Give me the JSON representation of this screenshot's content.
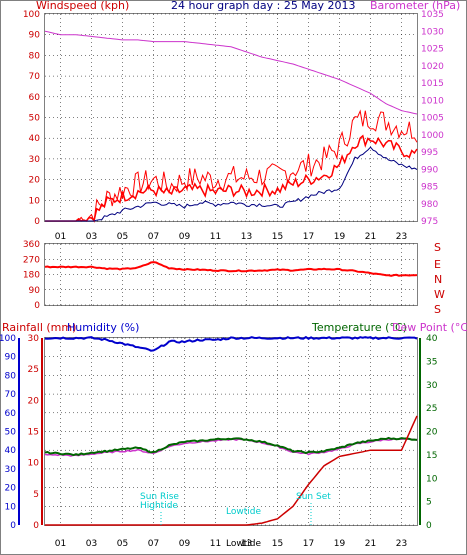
{
  "title": "24 hour graph day : 25 May 2013",
  "colors": {
    "wind": "#ff0000",
    "gust": "#ff0000",
    "avg": "#000080",
    "baro": "#cc33cc",
    "rain": "#cc0000",
    "humidity": "#0000cc",
    "temp": "#006600",
    "dew": "#cc33cc",
    "annot": "#00cccc",
    "grid": "#000000",
    "frame": "#808080"
  },
  "x_ticks": [
    "01",
    "03",
    "05",
    "07",
    "09",
    "11",
    "13",
    "15",
    "17",
    "19",
    "21",
    "23"
  ],
  "chart_data": [
    {
      "type": "line",
      "title": "24 hour graph day : 25 May 2013",
      "left_label": "Windspeed (kph)",
      "right_label": "Barometer (hPa)",
      "y_left_ticks": [
        0,
        10,
        20,
        30,
        40,
        50,
        60,
        70,
        80,
        90,
        100
      ],
      "y_right_ticks": [
        975,
        980,
        985,
        990,
        995,
        1000,
        1005,
        1010,
        1015,
        1020,
        1025,
        1030,
        1035
      ],
      "ylim_left": [
        0,
        100
      ],
      "ylim_right": [
        975,
        1035
      ],
      "x_hours": [
        0,
        1,
        2,
        3,
        4,
        5,
        6,
        7,
        8,
        9,
        10,
        11,
        12,
        13,
        14,
        15,
        16,
        17,
        18,
        19,
        20,
        21,
        22,
        23,
        24
      ],
      "series": [
        {
          "key": "gust",
          "values": [
            0,
            0,
            0,
            3,
            11,
            15,
            18,
            20,
            17,
            20,
            21,
            20,
            21,
            21,
            22,
            22,
            25,
            27,
            30,
            36,
            48,
            50,
            48,
            45,
            44
          ]
        },
        {
          "key": "wind",
          "values": [
            0,
            0,
            0,
            2,
            9,
            12,
            14,
            15,
            13,
            15,
            15,
            14,
            15,
            14,
            15,
            15,
            18,
            20,
            22,
            27,
            38,
            40,
            37,
            34,
            32
          ]
        },
        {
          "key": "avg",
          "values": [
            0,
            0,
            0,
            0,
            2,
            5,
            7,
            9,
            8,
            7,
            9,
            8,
            9,
            8,
            8,
            7,
            9,
            12,
            14,
            16,
            30,
            36,
            30,
            27,
            25
          ]
        },
        {
          "key": "baro",
          "values": [
            1030,
            1029,
            1029,
            1028.5,
            1028,
            1027.5,
            1027.5,
            1027,
            1027,
            1027,
            1026.5,
            1026,
            1025.5,
            1024,
            1022.5,
            1021.5,
            1020.5,
            1019,
            1017.5,
            1016,
            1014,
            1012,
            1009,
            1007,
            1006
          ]
        }
      ]
    },
    {
      "type": "line",
      "title": "",
      "y_ticks": [
        0,
        90,
        180,
        270,
        360
      ],
      "ylim": [
        0,
        360
      ],
      "right_letters": [
        "S",
        "E",
        "N",
        "W",
        "S"
      ],
      "x_hours": [
        0,
        1,
        2,
        3,
        4,
        5,
        6,
        7,
        8,
        9,
        10,
        11,
        12,
        13,
        14,
        15,
        16,
        17,
        18,
        19,
        20,
        21,
        22,
        23,
        24
      ],
      "series": [
        {
          "key": "wind_dir",
          "values": [
            225,
            225,
            225,
            225,
            215,
            212,
            220,
            255,
            218,
            210,
            208,
            204,
            202,
            202,
            204,
            208,
            205,
            210,
            212,
            210,
            200,
            188,
            175,
            175,
            178
          ]
        }
      ]
    },
    {
      "type": "line",
      "title": "",
      "left_labels": [
        "Rainfall (mm)",
        "Humidity (%)"
      ],
      "right_labels": [
        "Temperature (°C)",
        "Dew Point (°C)"
      ],
      "rain_ticks": [
        0,
        5,
        10,
        15,
        20,
        25,
        30
      ],
      "humidity_ticks": [
        0,
        10,
        20,
        30,
        40,
        50,
        60,
        70,
        80,
        90,
        100
      ],
      "temp_ticks": [
        0,
        5,
        10,
        15,
        20,
        25,
        30,
        35,
        40
      ],
      "ylim_rain": [
        0,
        30
      ],
      "ylim_humidity": [
        0,
        100
      ],
      "ylim_temp": [
        0,
        40
      ],
      "x_hours": [
        0,
        1,
        2,
        3,
        4,
        5,
        6,
        7,
        8,
        9,
        10,
        11,
        12,
        13,
        14,
        15,
        16,
        17,
        18,
        19,
        20,
        21,
        22,
        23,
        24
      ],
      "series": [
        {
          "key": "rain",
          "values": [
            0,
            0,
            0,
            0,
            0,
            0,
            0,
            0,
            0,
            0,
            0,
            0,
            0,
            0,
            0.3,
            1,
            3,
            6.5,
            9.5,
            11,
            11.5,
            12,
            12,
            12,
            17.5
          ]
        },
        {
          "key": "humidity",
          "values": [
            100,
            100,
            100,
            100,
            99,
            97,
            95,
            93,
            98,
            98,
            99,
            99,
            100,
            100,
            100,
            100,
            100,
            100,
            100,
            100,
            100,
            100,
            100,
            100,
            100
          ]
        },
        {
          "key": "temp",
          "values": [
            15.5,
            15.3,
            15,
            15.5,
            15.8,
            16.2,
            16.5,
            15.5,
            17,
            17.8,
            18,
            18.3,
            18.5,
            18.3,
            17.8,
            17,
            15.8,
            15.5,
            15.8,
            16.5,
            17.5,
            18,
            18.5,
            18.5,
            18.3
          ]
        },
        {
          "key": "dew",
          "values": [
            15,
            15,
            14.8,
            15.2,
            15.5,
            15.8,
            16,
            15.3,
            16.8,
            17.5,
            17.8,
            18,
            18.3,
            18.2,
            17.6,
            16.8,
            15.6,
            15.2,
            15.6,
            16.2,
            17.3,
            17.8,
            18.3,
            18.3,
            18.2
          ]
        }
      ]
    }
  ],
  "annotations": {
    "sunrise": {
      "label": "Sun Rise",
      "hour": 7.1
    },
    "hightide": {
      "label": "Hightide",
      "hour": 7.1
    },
    "lowtide": {
      "label": "Lowtide",
      "hour": 13.1
    },
    "lowtide_axis": {
      "label": "Lowtide",
      "hour": 13.1
    },
    "sunset": {
      "label": "Sun Set",
      "hour": 17.2
    }
  }
}
